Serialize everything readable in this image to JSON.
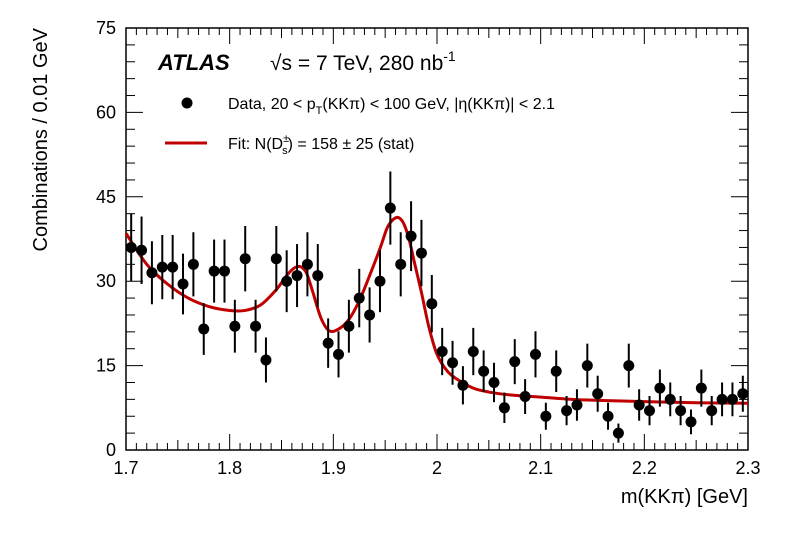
{
  "chart_data": {
    "type": "scatter",
    "experiment": "ATLAS",
    "energy_text": "√s = 7 TeV, 280 nb",
    "energy_sup": "-1",
    "xlabel": "m(KKπ) [GeV]",
    "ylabel": "Combinations / 0.01 GeV",
    "xlim": [
      1.7,
      2.3
    ],
    "ylim": [
      0,
      75
    ],
    "xticks": [
      "1.7",
      "1.8",
      "1.9",
      "2",
      "2.1",
      "2.2",
      "2.3"
    ],
    "yticks": [
      "0",
      "15",
      "30",
      "45",
      "60",
      "75"
    ],
    "legend": {
      "placement": "top-left",
      "data_label": "Data, 20 < p",
      "data_label_sub": "T",
      "data_label_rest": "(KKπ) < 100 GeV, |η(KKπ)| < 2.1",
      "fit_label": "Fit: N(D",
      "fit_label_sup": "±",
      "fit_label_sub": "s",
      "fit_label_rest": ") = 158 ± 25 (stat)"
    },
    "colors": {
      "data": "#000000",
      "fit": "#c00000"
    },
    "series": [
      {
        "x": [
          1.705,
          1.715,
          1.725,
          1.735,
          1.745,
          1.755,
          1.765,
          1.775,
          1.785,
          1.795,
          1.805,
          1.815,
          1.825,
          1.835,
          1.845,
          1.855,
          1.865,
          1.875,
          1.885,
          1.895,
          1.905,
          1.915,
          1.925,
          1.935,
          1.945,
          1.955,
          1.965,
          1.975,
          1.985,
          1.995,
          2.005,
          2.015,
          2.025,
          2.035,
          2.045,
          2.055,
          2.065,
          2.075,
          2.085,
          2.095,
          2.105,
          2.115,
          2.125,
          2.135,
          2.145,
          2.155,
          2.165,
          2.175,
          2.185,
          2.195,
          2.205,
          2.215,
          2.225,
          2.235,
          2.245,
          2.255,
          2.265,
          2.275,
          2.285,
          2.295
        ],
        "y": [
          36,
          35.5,
          31.5,
          32.5,
          32.5,
          29.5,
          33,
          21.5,
          31.8,
          31.8,
          22,
          34,
          22,
          16,
          34,
          30,
          31,
          33,
          31,
          19,
          17,
          22,
          27,
          24,
          30,
          43,
          33,
          38,
          35,
          26,
          17.5,
          15.5,
          11.5,
          17.5,
          14,
          12,
          7.5,
          15.7,
          9.5,
          17,
          6,
          14,
          7,
          8,
          15,
          10,
          6,
          3,
          15,
          8,
          7,
          11,
          9,
          7,
          5,
          11,
          7,
          9,
          9,
          10
        ],
        "yerr": [
          6,
          6,
          5.6,
          5.7,
          5.7,
          5.4,
          5.7,
          4.6,
          5.6,
          5.6,
          4.7,
          5.8,
          4.7,
          4,
          5.8,
          5.5,
          5.6,
          5.7,
          5.6,
          4.4,
          4.1,
          4.7,
          5.2,
          4.9,
          5.5,
          6.5,
          5.7,
          6.2,
          5.9,
          5.1,
          4.2,
          3.9,
          3.4,
          4.2,
          3.7,
          3.5,
          2.7,
          4,
          3.1,
          4.1,
          2.4,
          3.7,
          2.6,
          2.8,
          3.9,
          3.2,
          2.4,
          1.7,
          3.9,
          2.8,
          2.6,
          3.3,
          3,
          2.6,
          2.2,
          3.3,
          2.6,
          3,
          3,
          3.2
        ]
      },
      {
        "x": [
          1.7,
          1.72,
          1.74,
          1.76,
          1.78,
          1.8,
          1.815,
          1.83,
          1.845,
          1.855,
          1.862,
          1.868,
          1.874,
          1.88,
          1.888,
          1.896,
          1.905,
          1.915,
          1.925,
          1.935,
          1.945,
          1.952,
          1.958,
          1.963,
          1.968,
          1.973,
          1.978,
          1.985,
          1.992,
          2.0,
          2.01,
          2.02,
          2.035,
          2.05,
          2.07,
          2.1,
          2.13,
          2.16,
          2.2,
          2.25,
          2.3
        ],
        "y": [
          38.5,
          33,
          29.5,
          27,
          25.5,
          24.8,
          24.8,
          25.8,
          28.5,
          31,
          32.3,
          32.6,
          31.5,
          28.2,
          23.5,
          21.2,
          21.5,
          23.2,
          26.5,
          31,
          35.8,
          39.5,
          41,
          41.3,
          40.2,
          37.5,
          33.5,
          28,
          22,
          17,
          14,
          12.5,
          11,
          10.3,
          9.8,
          9.4,
          9,
          8.8,
          8.6,
          8.4,
          8.3
        ]
      }
    ]
  }
}
